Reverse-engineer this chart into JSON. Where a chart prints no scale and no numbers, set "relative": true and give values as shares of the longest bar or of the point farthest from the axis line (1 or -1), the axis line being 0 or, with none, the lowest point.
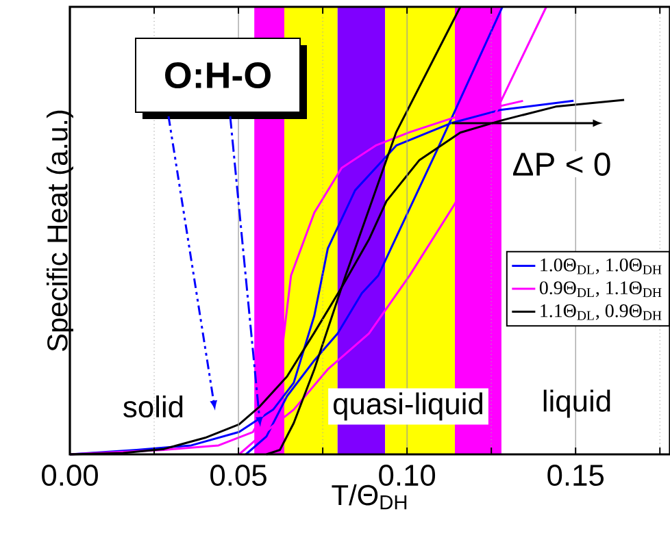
{
  "chart_data": {
    "type": "line",
    "relative": true,
    "xlabel": "T/Θ$_{DH}$",
    "ylabel": "Specific Heat (a.u.)",
    "xlim": [
      0,
      0.178
    ],
    "xticks": [
      {
        "value": 0,
        "label": "0.00"
      },
      {
        "value": 0.025,
        "label": null
      },
      {
        "value": 0.05,
        "label": "0.05"
      },
      {
        "value": 0.075,
        "label": null
      },
      {
        "value": 0.1,
        "label": "0.10"
      },
      {
        "value": 0.125,
        "label": null
      },
      {
        "value": 0.15,
        "label": "0.15"
      },
      {
        "value": 0.175,
        "label": null
      }
    ],
    "grid": "x",
    "legend": "right",
    "marker": "none",
    "line_style": "solid",
    "tick_labels": "x",
    "bands": [
      {
        "axis": "x",
        "from": 0.0547,
        "to": 0.0636,
        "color": "#ff00ff"
      },
      {
        "axis": "x",
        "from": 0.0636,
        "to": 0.0794,
        "color": "#ffff00"
      },
      {
        "axis": "x",
        "from": 0.0794,
        "to": 0.0935,
        "color": "#7f00ff"
      },
      {
        "axis": "x",
        "from": 0.0935,
        "to": 0.1142,
        "color": "#ffff00"
      },
      {
        "axis": "x",
        "from": 0.1142,
        "to": 0.128,
        "color": "#ff00ff"
      }
    ],
    "series": [
      {
        "name": "1.0Θ$_{DL}$, 1.0Θ$_{DH}$",
        "color": "#0000ff",
        "x": [
          0,
          0.0198,
          0.036,
          0.0502,
          0.0603,
          0.0664,
          0.0725,
          0.0765,
          0.0846,
          0.0968,
          0.113,
          0.1279,
          0.1494
        ],
        "values": [
          0,
          0.01,
          0.02,
          0.05,
          0.1,
          0.16,
          0.31,
          0.46,
          0.59,
          0.69,
          0.74,
          0.77,
          0.79
        ]
      },
      {
        "color": "#0000ff",
        "x": [
          0.0522,
          0.0583,
          0.0644,
          0.0725,
          0.0794,
          0.0866,
          0.0915,
          0.1089,
          0.1283
        ],
        "values": [
          0,
          0.04,
          0.13,
          0.21,
          0.27,
          0.36,
          0.4,
          0.68,
          1.0
        ]
      },
      {
        "name": "0.9Θ$_{DL}$, 1.1Θ$_{DH}$",
        "color": "#ff00ff",
        "x": [
          0,
          0.0279,
          0.0441,
          0.0543,
          0.0603,
          0.0632,
          0.0656,
          0.0725,
          0.0806,
          0.0907,
          0.1008,
          0.117,
          0.1344
        ],
        "values": [
          0,
          0.01,
          0.02,
          0.05,
          0.13,
          0.25,
          0.4,
          0.54,
          0.64,
          0.69,
          0.72,
          0.76,
          0.79
        ]
      },
      {
        "color": "#ff00ff",
        "x": [
          0.0502,
          0.0563,
          0.0664,
          0.0765,
          0.0887,
          0.1008,
          0.1142,
          0.1279,
          0.1413
        ],
        "values": [
          0,
          0.04,
          0.1,
          0.19,
          0.27,
          0.4,
          0.56,
          0.79,
          1.0
        ]
      },
      {
        "name": "1.1Θ$_{DL}$, 0.9Θ$_{DH}$",
        "color": "#000000",
        "x": [
          0,
          0.0158,
          0.0279,
          0.0401,
          0.0502,
          0.0563,
          0.0644,
          0.0725,
          0.0806,
          0.0887,
          0.0939,
          0.1036,
          0.1158,
          0.1279,
          0.1441,
          0.1644
        ],
        "values": [
          0,
          0.003,
          0.012,
          0.037,
          0.067,
          0.107,
          0.174,
          0.272,
          0.373,
          0.48,
          0.566,
          0.657,
          0.719,
          0.746,
          0.777,
          0.792
        ]
      },
      {
        "color": "#000000",
        "x": [
          0.0583,
          0.0623,
          0.0664,
          0.0725,
          0.0818,
          0.0968,
          0.1158
        ],
        "values": [
          0,
          0.01,
          0.07,
          0.19,
          0.4,
          0.72,
          1.0
        ]
      }
    ],
    "annotations": [
      "O:H-O",
      "ΔP < 0",
      "solid",
      "quasi-liquid",
      "liquid"
    ]
  }
}
